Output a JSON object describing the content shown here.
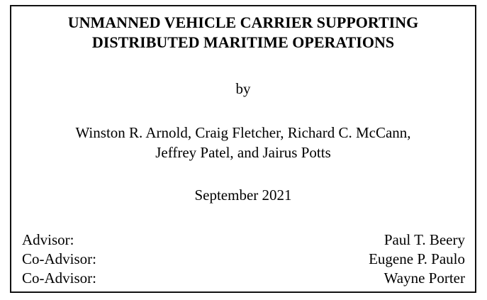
{
  "title": {
    "line1": "UNMANNED VEHICLE CARRIER SUPPORTING",
    "line2": "DISTRIBUTED MARITIME OPERATIONS"
  },
  "by": "by",
  "authors": {
    "line1": "Winston R. Arnold, Craig Fletcher, Richard C. McCann,",
    "line2": "Jeffrey Patel, and Jairus Potts"
  },
  "date": "September 2021",
  "advisors": [
    {
      "role": "Advisor:",
      "name": "Paul T. Beery"
    },
    {
      "role": "Co-Advisor:",
      "name": "Eugene P. Paulo"
    },
    {
      "role": "Co-Advisor:",
      "name": "Wayne Porter"
    }
  ]
}
